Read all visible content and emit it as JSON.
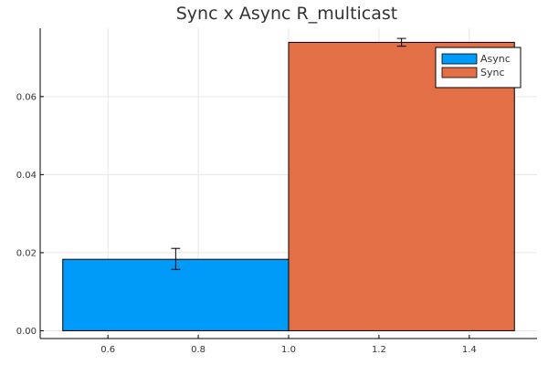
{
  "chart_data": {
    "type": "bar",
    "title": "Sync x Async R_multicast",
    "xlabel": "",
    "ylabel": "",
    "xlim": [
      0.45,
      1.55
    ],
    "ylim": [
      -0.002,
      0.0775
    ],
    "grid": true,
    "legend_position": "top-right",
    "x_ticks": [
      0.6,
      0.8,
      1.0,
      1.2,
      1.4
    ],
    "x_tick_labels": [
      "0.6",
      "0.8",
      "1.0",
      "1.2",
      "1.4"
    ],
    "y_ticks": [
      0.0,
      0.02,
      0.04,
      0.06
    ],
    "y_tick_labels": [
      "0.00",
      "0.02",
      "0.04",
      "0.06"
    ],
    "series": [
      {
        "name": "Async",
        "color": "#009af9",
        "x_range": [
          0.5,
          1.0
        ],
        "value": 0.0183,
        "error_x": 0.75,
        "error_low": 0.0157,
        "error_high": 0.0211
      },
      {
        "name": "Sync",
        "color": "#e26f46",
        "x_range": [
          1.0,
          1.5
        ],
        "value": 0.0739,
        "error_x": 1.25,
        "error_low": 0.0729,
        "error_high": 0.0749
      }
    ]
  }
}
